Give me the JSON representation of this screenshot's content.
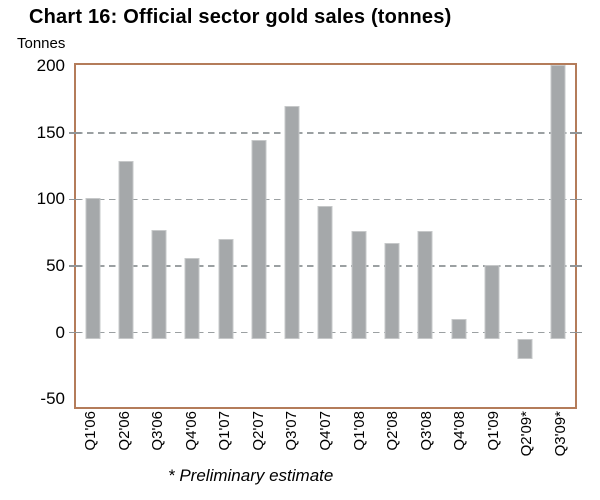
{
  "page": {
    "title": "Chart 16: Official sector gold sales (tonnes)"
  },
  "chart_data": {
    "type": "bar",
    "title": "Chart 16: Official sector gold sales (tonnes)",
    "ylabel": "Tonnes",
    "xlabel": "",
    "categories": [
      "Q1'06",
      "Q2'06",
      "Q3'06",
      "Q4'06",
      "Q1'07",
      "Q2'07",
      "Q3'07",
      "Q4'07",
      "Q1'08",
      "Q2'08",
      "Q3'08",
      "Q4'08",
      "Q1'09",
      "Q2'09*",
      "Q3'09*"
    ],
    "values": [
      101,
      129,
      77,
      56,
      70,
      145,
      170,
      95,
      76,
      67,
      76,
      10,
      51,
      -15,
      201
    ],
    "footnote": "* Preliminary estimate",
    "yticks": [
      200,
      150,
      100,
      50,
      0,
      -50
    ],
    "gridline_values": [
      150,
      100,
      50,
      0
    ],
    "ylim": [
      -56,
      201
    ],
    "grid": "horizontal-dashed",
    "legend": "none",
    "baseline_offset": -5,
    "colors": {
      "bar_fill": "#a5a8aa",
      "bar_edge": "#c6c8c9",
      "frame": "#b47c5a",
      "gridline": "#9ba0a2",
      "text": "#000000",
      "background": "#ffffff"
    }
  }
}
